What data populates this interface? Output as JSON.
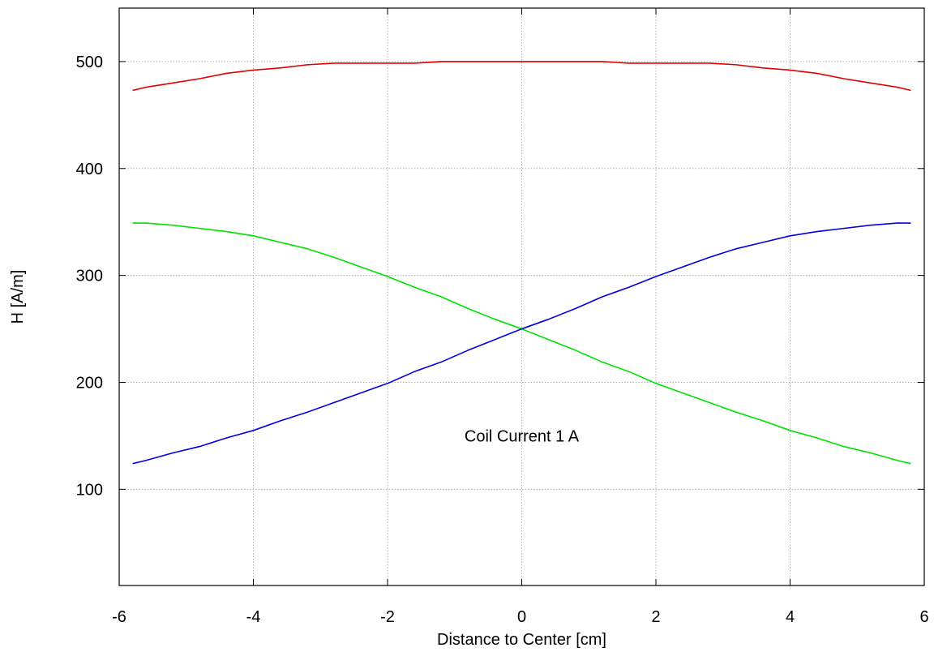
{
  "chart_data": {
    "type": "line",
    "title": "",
    "xlabel": "Distance to Center [cm]",
    "ylabel": "H [A/m]",
    "xlim": [
      -6,
      6
    ],
    "ylim": [
      10,
      550
    ],
    "xticks": [
      -6,
      -4,
      -2,
      0,
      2,
      4,
      6
    ],
    "yticks": [
      100,
      200,
      300,
      400,
      500
    ],
    "grid": true,
    "legend": "none",
    "annotations": [
      {
        "text": "Coil Current 1 A",
        "x": 0,
        "y": 150
      }
    ],
    "series": [
      {
        "color": "#e00000",
        "x": [
          -5.8,
          -5.6,
          -5.2,
          -4.8,
          -4.4,
          -4.0,
          -3.6,
          -3.2,
          -2.8,
          -2.4,
          -2.0,
          -1.6,
          -1.2,
          -0.8,
          -0.4,
          0.0,
          0.4,
          0.8,
          1.2,
          1.6,
          2.0,
          2.4,
          2.8,
          3.2,
          3.6,
          4.0,
          4.4,
          4.8,
          5.2,
          5.6,
          5.8
        ],
        "y": [
          473,
          476,
          480,
          484,
          489,
          492,
          494,
          497,
          498.5,
          498.5,
          498.5,
          498.5,
          500,
          500,
          500,
          500,
          500,
          500,
          500,
          498.5,
          498.5,
          498.5,
          498.5,
          497,
          494,
          492,
          489,
          484,
          480,
          476,
          473
        ]
      },
      {
        "color": "#00e000",
        "x": [
          -5.8,
          -5.6,
          -5.2,
          -4.8,
          -4.4,
          -4.0,
          -3.6,
          -3.2,
          -2.8,
          -2.4,
          -2.0,
          -1.6,
          -1.2,
          -0.8,
          -0.4,
          0.0,
          0.4,
          0.8,
          1.2,
          1.6,
          2.0,
          2.4,
          2.8,
          3.2,
          3.6,
          4.0,
          4.4,
          4.8,
          5.2,
          5.6,
          5.8
        ],
        "y": [
          349,
          349,
          347,
          344,
          341,
          337,
          331,
          325,
          317,
          308,
          299,
          289,
          280,
          269,
          259,
          250,
          240,
          230,
          219,
          210,
          199,
          190,
          181,
          172,
          164,
          155,
          148,
          140,
          134,
          127,
          124
        ]
      },
      {
        "color": "#0000e0",
        "x": [
          -5.8,
          -5.6,
          -5.2,
          -4.8,
          -4.4,
          -4.0,
          -3.6,
          -3.2,
          -2.8,
          -2.4,
          -2.0,
          -1.6,
          -1.2,
          -0.8,
          -0.4,
          0.0,
          0.4,
          0.8,
          1.2,
          1.6,
          2.0,
          2.4,
          2.8,
          3.2,
          3.6,
          4.0,
          4.4,
          4.8,
          5.2,
          5.6,
          5.8
        ],
        "y": [
          124,
          127,
          134,
          140,
          148,
          155,
          164,
          172,
          181,
          190,
          199,
          210,
          219,
          230,
          240,
          250,
          259,
          269,
          280,
          289,
          299,
          308,
          317,
          325,
          331,
          337,
          341,
          344,
          347,
          349,
          349
        ]
      }
    ]
  }
}
